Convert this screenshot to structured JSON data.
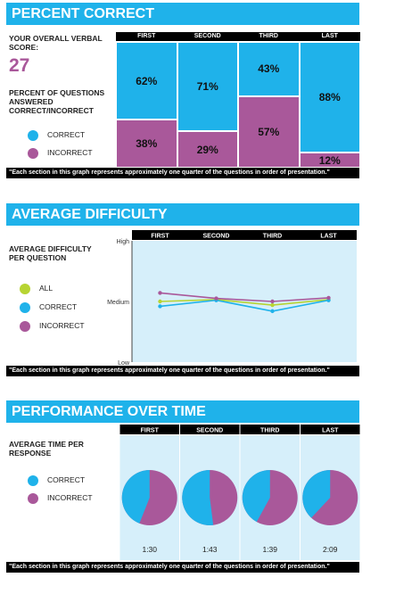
{
  "colors": {
    "correct": "#1fb2ea",
    "incorrect": "#a9589a",
    "all": "#b7d432",
    "panel": "#d6effa",
    "banner": "#1fb2ea"
  },
  "section1": {
    "title": "PERCENT CORRECT",
    "score_label": "YOUR OVERALL VERBAL SCORE:",
    "score": "27",
    "desc": "PERCENT OF QUESTIONS ANSWERED CORRECT/INCORRECT",
    "legend": {
      "correct": "CORRECT",
      "incorrect": "INCORRECT"
    },
    "note": "\"Each section in this graph represents approximately one quarter of the questions in order of presentation.\""
  },
  "section2": {
    "title": "AVERAGE DIFFICULTY",
    "desc": "AVERAGE DIFFICULTY PER QUESTION",
    "legend": {
      "all": "ALL",
      "correct": "CORRECT",
      "incorrect": "INCORRECT"
    },
    "note": "\"Each section in this graph represents approximately one quarter of the questions in order of presentation.\""
  },
  "section3": {
    "title": "PERFORMANCE OVER TIME",
    "desc": "AVERAGE TIME PER RESPONSE",
    "legend": {
      "correct": "CORRECT",
      "incorrect": "INCORRECT"
    },
    "note": "\"Each section in this graph represents approximately one quarter of the questions in order of presentation.\""
  },
  "chart_data": [
    {
      "type": "bar",
      "stacked": true,
      "categories": [
        "FIRST",
        "SECOND",
        "THIRD",
        "LAST"
      ],
      "series": [
        {
          "name": "CORRECT",
          "values": [
            62,
            71,
            43,
            88
          ],
          "labels": [
            "62%",
            "71%",
            "43%",
            "88%"
          ]
        },
        {
          "name": "INCORRECT",
          "values": [
            38,
            29,
            57,
            12
          ],
          "labels": [
            "38%",
            "29%",
            "57%",
            "12%"
          ]
        }
      ],
      "ylim": [
        0,
        100
      ]
    },
    {
      "type": "line",
      "categories": [
        "FIRST",
        "SECOND",
        "THIRD",
        "LAST"
      ],
      "yticks": [
        "High",
        "Medium",
        "Low"
      ],
      "ylim": [
        0,
        2
      ],
      "series": [
        {
          "name": "ALL",
          "values": [
            1.0,
            1.03,
            0.94,
            1.03
          ]
        },
        {
          "name": "CORRECT",
          "values": [
            0.92,
            1.02,
            0.84,
            1.02
          ]
        },
        {
          "name": "INCORRECT",
          "values": [
            1.14,
            1.05,
            1.0,
            1.06
          ]
        }
      ],
      "grid": false
    },
    {
      "type": "pie",
      "categories": [
        "FIRST",
        "SECOND",
        "THIRD",
        "LAST"
      ],
      "series": [
        {
          "name": "CORRECT",
          "values": [
            44,
            52,
            42,
            38
          ]
        },
        {
          "name": "INCORRECT",
          "values": [
            56,
            48,
            58,
            62
          ]
        }
      ],
      "times": [
        "1:30",
        "1:43",
        "1:39",
        "2:09"
      ]
    }
  ]
}
